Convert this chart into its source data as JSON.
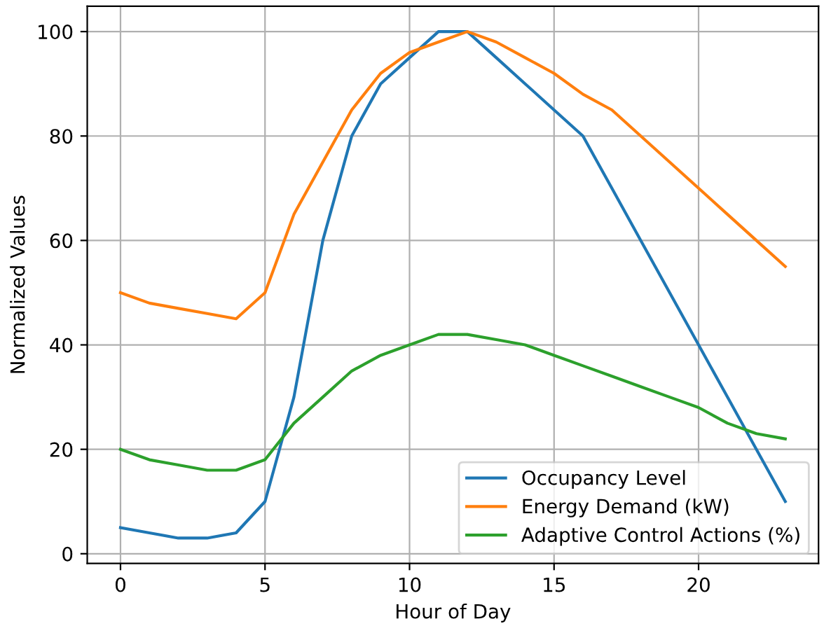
{
  "chart_data": {
    "type": "line",
    "xlabel": "Hour of Day",
    "ylabel": "Normalized Values",
    "x": [
      0,
      1,
      2,
      3,
      4,
      5,
      6,
      7,
      8,
      9,
      10,
      11,
      12,
      13,
      14,
      15,
      16,
      17,
      18,
      19,
      20,
      21,
      22,
      23
    ],
    "series": [
      {
        "name": "Occupancy Level",
        "color": "#1f77b4",
        "values": [
          5,
          4,
          3,
          3,
          4,
          10,
          30,
          60,
          80,
          90,
          95,
          100,
          100,
          95,
          90,
          85,
          80,
          70,
          60,
          50,
          40,
          30,
          20,
          10
        ]
      },
      {
        "name": "Energy Demand (kW)",
        "color": "#ff7f0e",
        "values": [
          50,
          48,
          47,
          46,
          45,
          50,
          65,
          75,
          85,
          92,
          96,
          98,
          100,
          98,
          95,
          92,
          88,
          85,
          80,
          75,
          70,
          65,
          60,
          55
        ]
      },
      {
        "name": "Adaptive Control Actions (%)",
        "color": "#2ca02c",
        "values": [
          20,
          18,
          17,
          16,
          16,
          18,
          25,
          30,
          35,
          38,
          40,
          42,
          42,
          41,
          40,
          38,
          36,
          34,
          32,
          30,
          28,
          25,
          23,
          22
        ]
      }
    ],
    "xlim": [
      -1.15,
      24.15
    ],
    "ylim": [
      -1.85,
      104.85
    ],
    "xticks": [
      0,
      5,
      10,
      15,
      20
    ],
    "yticks": [
      0,
      20,
      40,
      60,
      80,
      100
    ],
    "grid": true,
    "legend": "bottom right"
  }
}
